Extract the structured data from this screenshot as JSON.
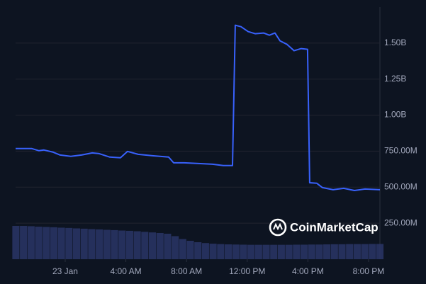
{
  "chart_data": {
    "type": "line",
    "watermark": "CoinMarketCap",
    "xlim": [
      -3.27,
      20.75
    ],
    "xticks": [
      {
        "value": 0,
        "label": "23 Jan"
      },
      {
        "value": 4,
        "label": "4:00 AM"
      },
      {
        "value": 8,
        "label": "8:00 AM"
      },
      {
        "value": 12,
        "label": "12:00 PM"
      },
      {
        "value": 16,
        "label": "4:00 PM"
      },
      {
        "value": 20,
        "label": "8:00 PM"
      }
    ],
    "ylim": [
      0,
      1750
    ],
    "yticks": [
      {
        "value": 250,
        "label": "250.00M"
      },
      {
        "value": 500,
        "label": "500.00M"
      },
      {
        "value": 750,
        "label": "750.00M"
      },
      {
        "value": 1000,
        "label": "1.00B"
      },
      {
        "value": 1250,
        "label": "1.25B"
      },
      {
        "value": 1500,
        "label": "1.50B"
      }
    ],
    "grid": true,
    "series": [
      {
        "type": "line",
        "color": "#3861fb",
        "x": [
          -3.27,
          -2.2,
          -1.73,
          -1.4,
          -0.79,
          -0.33,
          0.37,
          1.07,
          1.78,
          2.24,
          2.94,
          3.64,
          4.11,
          4.81,
          5.75,
          6.82,
          7.15,
          7.85,
          8.79,
          9.72,
          10.42,
          11.03,
          11.21,
          11.59,
          12.06,
          12.52,
          13.08,
          13.46,
          13.83,
          14.16,
          14.63,
          15.09,
          15.56,
          15.98,
          16.12,
          16.59,
          16.96,
          17.66,
          18.36,
          19.07,
          19.77,
          20.75
        ],
        "values": [
          768,
          768,
          753,
          758,
          743,
          723,
          714,
          723,
          738,
          733,
          709,
          704,
          748,
          728,
          718,
          709,
          669,
          669,
          664,
          659,
          650,
          650,
          1624,
          1614,
          1580,
          1565,
          1570,
          1555,
          1570,
          1516,
          1491,
          1447,
          1462,
          1457,
          531,
          527,
          497,
          482,
          492,
          477,
          487,
          482
        ]
      },
      {
        "type": "bar",
        "color": "#2a3566",
        "x": [
          -3.25,
          -2.75,
          -2.25,
          -1.75,
          -1.25,
          -0.75,
          -0.25,
          0.25,
          0.75,
          1.25,
          1.75,
          2.25,
          2.75,
          3.25,
          3.75,
          4.25,
          4.75,
          5.25,
          5.75,
          6.25,
          6.75,
          7.25,
          7.75,
          8.25,
          8.75,
          9.25,
          9.75,
          10.25,
          10.75,
          11.25,
          11.75,
          12.25,
          12.75,
          13.25,
          13.75,
          14.25,
          14.75,
          15.25,
          15.75,
          16.25,
          16.75,
          17.25,
          17.75,
          18.25,
          18.75,
          19.25,
          19.75,
          20.25,
          20.75
        ],
        "values": [
          231,
          231,
          229,
          226,
          224,
          222,
          219,
          217,
          214,
          212,
          209,
          207,
          204,
          202,
          199,
          197,
          194,
          190,
          186,
          182,
          177,
          160,
          140,
          128,
          118,
          112,
          108,
          105,
          103,
          102,
          101,
          100,
          100,
          100,
          100,
          100,
          100,
          101,
          101,
          102,
          102,
          103,
          104,
          104,
          105,
          105,
          105,
          106,
          106
        ]
      }
    ]
  }
}
